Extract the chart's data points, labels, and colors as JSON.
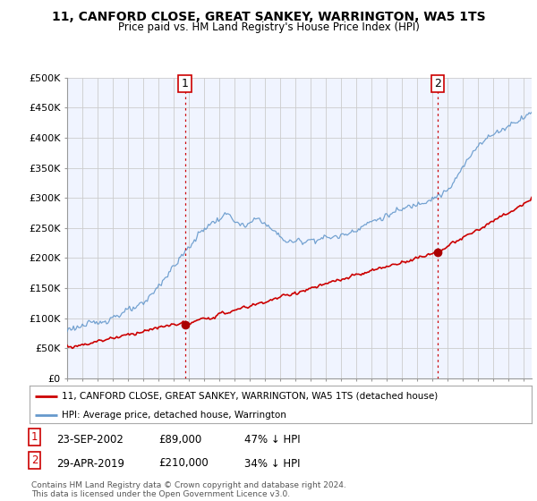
{
  "title": "11, CANFORD CLOSE, GREAT SANKEY, WARRINGTON, WA5 1TS",
  "subtitle": "Price paid vs. HM Land Registry's House Price Index (HPI)",
  "ylim": [
    0,
    500000
  ],
  "yticks": [
    0,
    50000,
    100000,
    150000,
    200000,
    250000,
    300000,
    350000,
    400000,
    450000,
    500000
  ],
  "ytick_labels": [
    "£0",
    "£50K",
    "£100K",
    "£150K",
    "£200K",
    "£250K",
    "£300K",
    "£350K",
    "£400K",
    "£450K",
    "£500K"
  ],
  "hpi_color": "#6699cc",
  "hpi_fill_color": "#ddeeff",
  "price_color": "#cc0000",
  "marker_color": "#aa0000",
  "vline_color": "#cc0000",
  "annotation_border_color": "#cc0000",
  "purchase1_date": 2002.73,
  "purchase1_price": 89000,
  "purchase1_label": "1",
  "purchase2_date": 2019.33,
  "purchase2_price": 210000,
  "purchase2_label": "2",
  "legend_line1": "11, CANFORD CLOSE, GREAT SANKEY, WARRINGTON, WA5 1TS (detached house)",
  "legend_line2": "HPI: Average price, detached house, Warrington",
  "row1_num": "1",
  "row1_date": "23-SEP-2002",
  "row1_price": "£89,000",
  "row1_pct": "47% ↓ HPI",
  "row2_num": "2",
  "row2_date": "29-APR-2019",
  "row2_price": "£210,000",
  "row2_pct": "34% ↓ HPI",
  "footnote": "Contains HM Land Registry data © Crown copyright and database right 2024.\nThis data is licensed under the Open Government Licence v3.0.",
  "background_color": "#ffffff",
  "chart_bg_color": "#f0f4ff",
  "grid_color": "#cccccc",
  "xlim_start": 1995,
  "xlim_end": 2025.5
}
